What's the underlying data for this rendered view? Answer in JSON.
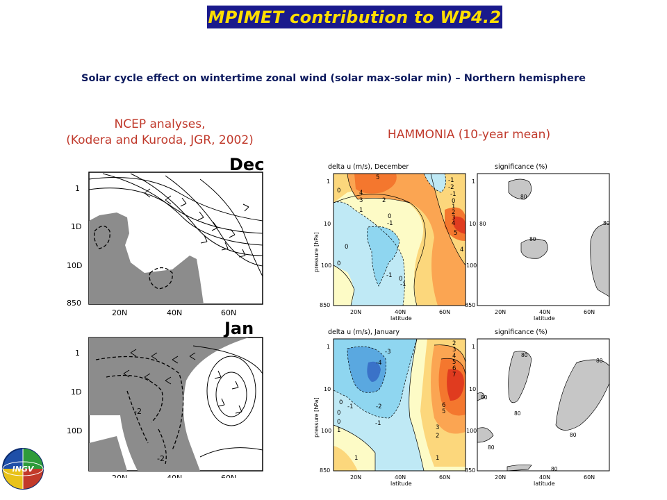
{
  "header": {
    "title": "MPIMET contribution to WP4.2",
    "subtitle": "Solar cycle effect on wintertime zonal wind (solar max-solar min) – Northern hemisphere"
  },
  "left": {
    "caption_line1": "NCEP analyses,",
    "caption_line2": "(Kodera and Kuroda, JGR, 2002)",
    "panel_dec_label": "Dec",
    "panel_jan_label": "Jan",
    "y_ticks": [
      "1",
      "1D",
      "10D",
      "850"
    ],
    "x_ticks": [
      "20N",
      "40N",
      "60N"
    ],
    "jan_contour_labels": [
      "-2",
      "-2"
    ]
  },
  "right": {
    "caption": "HAMMONIA (10-year mean)",
    "dec_title": "delta u (m/s), December",
    "jan_title": "delta u (m/s), January",
    "sig_title": "significance (%)",
    "y_axis_label": "pressure [hPa]",
    "x_axis_label": "latitude",
    "y_ticks": [
      "1",
      "10",
      "100",
      "850"
    ],
    "x_ticks": [
      "20N",
      "40N",
      "60N"
    ],
    "dec_contour_labels": [
      "5",
      "4",
      "3",
      "2",
      "1",
      "0",
      "-1",
      "-2",
      "-1",
      "0",
      "1",
      "2",
      "3",
      "4",
      "5",
      "4",
      "0",
      "0",
      "0",
      "-1",
      "-1",
      "0",
      "-1"
    ],
    "jan_contour_labels": [
      "-3",
      "-4",
      "-2",
      "-1",
      "0",
      "0",
      "1",
      "1",
      "2",
      "3",
      "4",
      "5",
      "6",
      "7",
      "6",
      "5",
      "3",
      "2",
      "1",
      "0",
      "-1"
    ],
    "sig_dec_labels": [
      "80",
      "80",
      "80",
      "80"
    ],
    "sig_jan_labels": [
      "80",
      "80",
      "80",
      "80",
      "80",
      "80",
      "80"
    ]
  },
  "logo": {
    "text": "INGV"
  },
  "colors": {
    "title_bg": "#1a1a8c",
    "title_fg": "#ffde00",
    "subtitle": "#0d1a5e",
    "caption": "#c0392b"
  }
}
